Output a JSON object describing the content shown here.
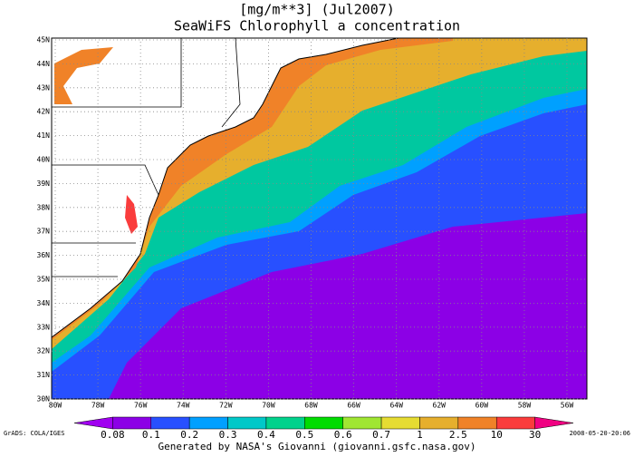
{
  "header": {
    "units": "[mg/m**3] (Jul2007)",
    "title": "SeaWiFS Chlorophyll a concentration"
  },
  "map": {
    "lat_labels": [
      "30N",
      "31N",
      "32N",
      "33N",
      "34N",
      "35N",
      "36N",
      "37N",
      "38N",
      "39N",
      "40N",
      "41N",
      "42N",
      "43N",
      "44N",
      "45N"
    ],
    "lon_labels": [
      "80W",
      "78W",
      "76W",
      "74W",
      "72W",
      "70W",
      "68W",
      "66W",
      "64W",
      "62W",
      "60W",
      "58W",
      "56W"
    ]
  },
  "colorbar": {
    "labels": [
      "0.08",
      "0.1",
      "0.2",
      "0.3",
      "0.4",
      "0.5",
      "0.6",
      "0.7",
      "1",
      "2.5",
      "10",
      "30"
    ],
    "colors": [
      "#a000f0",
      "#8c00e6",
      "#2850ff",
      "#00a0ff",
      "#00c8c8",
      "#00d28c",
      "#00dc00",
      "#a0e632",
      "#e6dc32",
      "#e6af2d",
      "#f08228",
      "#fa3c3c",
      "#f00082"
    ]
  },
  "footer": {
    "left": "GrADS: COLA/IGES",
    "right": "2008-05-20-20:06",
    "credit": "Generated by NASA's Giovanni (giovanni.gsfc.nasa.gov)"
  }
}
